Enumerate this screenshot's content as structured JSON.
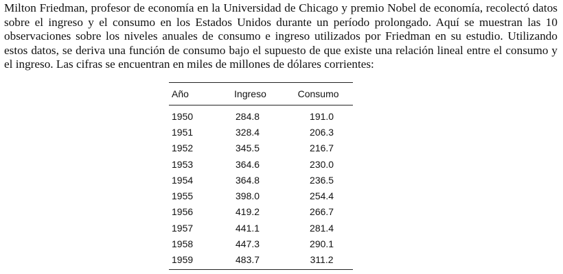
{
  "paragraph": "Milton Friedman, profesor de economía en la Universidad de Chicago y premio Nobel de economía, recolectó datos sobre el ingreso y el consumo en los Estados Unidos durante un período prolongado. Aquí se muestran las 10 observaciones sobre los niveles anuales de consumo e ingreso utilizados por Friedman en su estudio. Utilizando estos datos, se deriva una función de consumo bajo el supuesto de que existe una relación lineal entre el consumo y el ingreso. Las cifras se encuentran en miles de millones de dólares corrientes:",
  "table": {
    "headers": [
      "Año",
      "Ingreso",
      "Consumo"
    ],
    "rows": [
      [
        "1950",
        "284.8",
        "191.0"
      ],
      [
        "1951",
        "328.4",
        "206.3"
      ],
      [
        "1952",
        "345.5",
        "216.7"
      ],
      [
        "1953",
        "364.6",
        "230.0"
      ],
      [
        "1954",
        "364.8",
        "236.5"
      ],
      [
        "1955",
        "398.0",
        "254.4"
      ],
      [
        "1956",
        "419.2",
        "266.7"
      ],
      [
        "1957",
        "441.1",
        "281.4"
      ],
      [
        "1958",
        "447.3",
        "290.1"
      ],
      [
        "1959",
        "483.7",
        "311.2"
      ]
    ]
  }
}
